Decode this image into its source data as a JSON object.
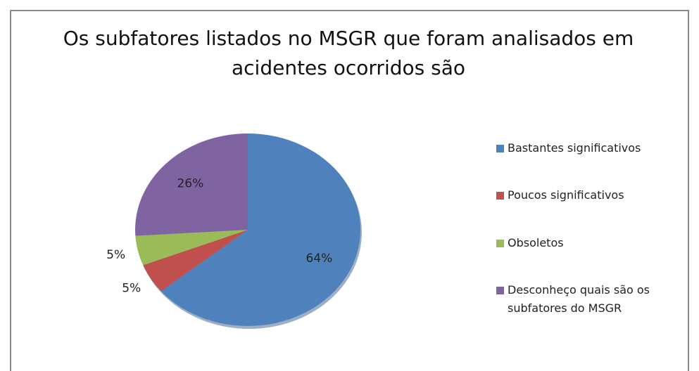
{
  "chart_data": {
    "type": "pie",
    "title": "Os subfatores listados no MSGR que foram analisados em acidentes ocorridos são",
    "categories": [
      "Bastantes significativos",
      "Poucos significativos",
      "Obsoletos",
      "Desconheço quais são os subfatores do MSGR"
    ],
    "values": [
      64,
      5,
      5,
      26
    ],
    "value_labels": [
      "64%",
      "5%",
      "5%",
      "26%"
    ],
    "colors": [
      "#4f81bd",
      "#c0504d",
      "#9bbb59",
      "#8064a2"
    ],
    "legend": "right"
  }
}
